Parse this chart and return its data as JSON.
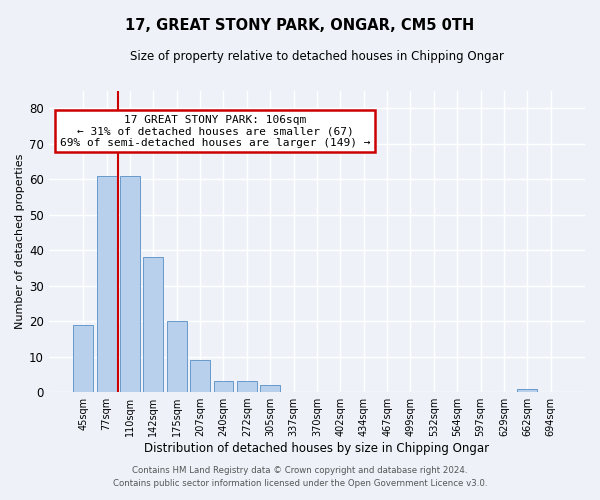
{
  "title": "17, GREAT STONY PARK, ONGAR, CM5 0TH",
  "subtitle": "Size of property relative to detached houses in Chipping Ongar",
  "xlabel": "Distribution of detached houses by size in Chipping Ongar",
  "ylabel": "Number of detached properties",
  "bar_labels": [
    "45sqm",
    "77sqm",
    "110sqm",
    "142sqm",
    "175sqm",
    "207sqm",
    "240sqm",
    "272sqm",
    "305sqm",
    "337sqm",
    "370sqm",
    "402sqm",
    "434sqm",
    "467sqm",
    "499sqm",
    "532sqm",
    "564sqm",
    "597sqm",
    "629sqm",
    "662sqm",
    "694sqm"
  ],
  "bar_values": [
    19,
    61,
    61,
    38,
    20,
    9,
    3,
    3,
    2,
    0,
    0,
    0,
    0,
    0,
    0,
    0,
    0,
    0,
    0,
    1,
    0
  ],
  "bar_color": "#b8d0eb",
  "bar_edge_color": "#6699cc",
  "property_line_x": 1.5,
  "ylim": [
    0,
    85
  ],
  "yticks": [
    0,
    10,
    20,
    30,
    40,
    50,
    60,
    70,
    80
  ],
  "annotation_title": "17 GREAT STONY PARK: 106sqm",
  "annotation_line1": "← 31% of detached houses are smaller (67)",
  "annotation_line2": "69% of semi-detached houses are larger (149) →",
  "annotation_box_color": "#ffffff",
  "annotation_box_edge_color": "#cc0000",
  "vline_color": "#cc0000",
  "footer_line1": "Contains HM Land Registry data © Crown copyright and database right 2024.",
  "footer_line2": "Contains public sector information licensed under the Open Government Licence v3.0.",
  "background_color": "#eef2f8",
  "grid_color": "#ffffff"
}
